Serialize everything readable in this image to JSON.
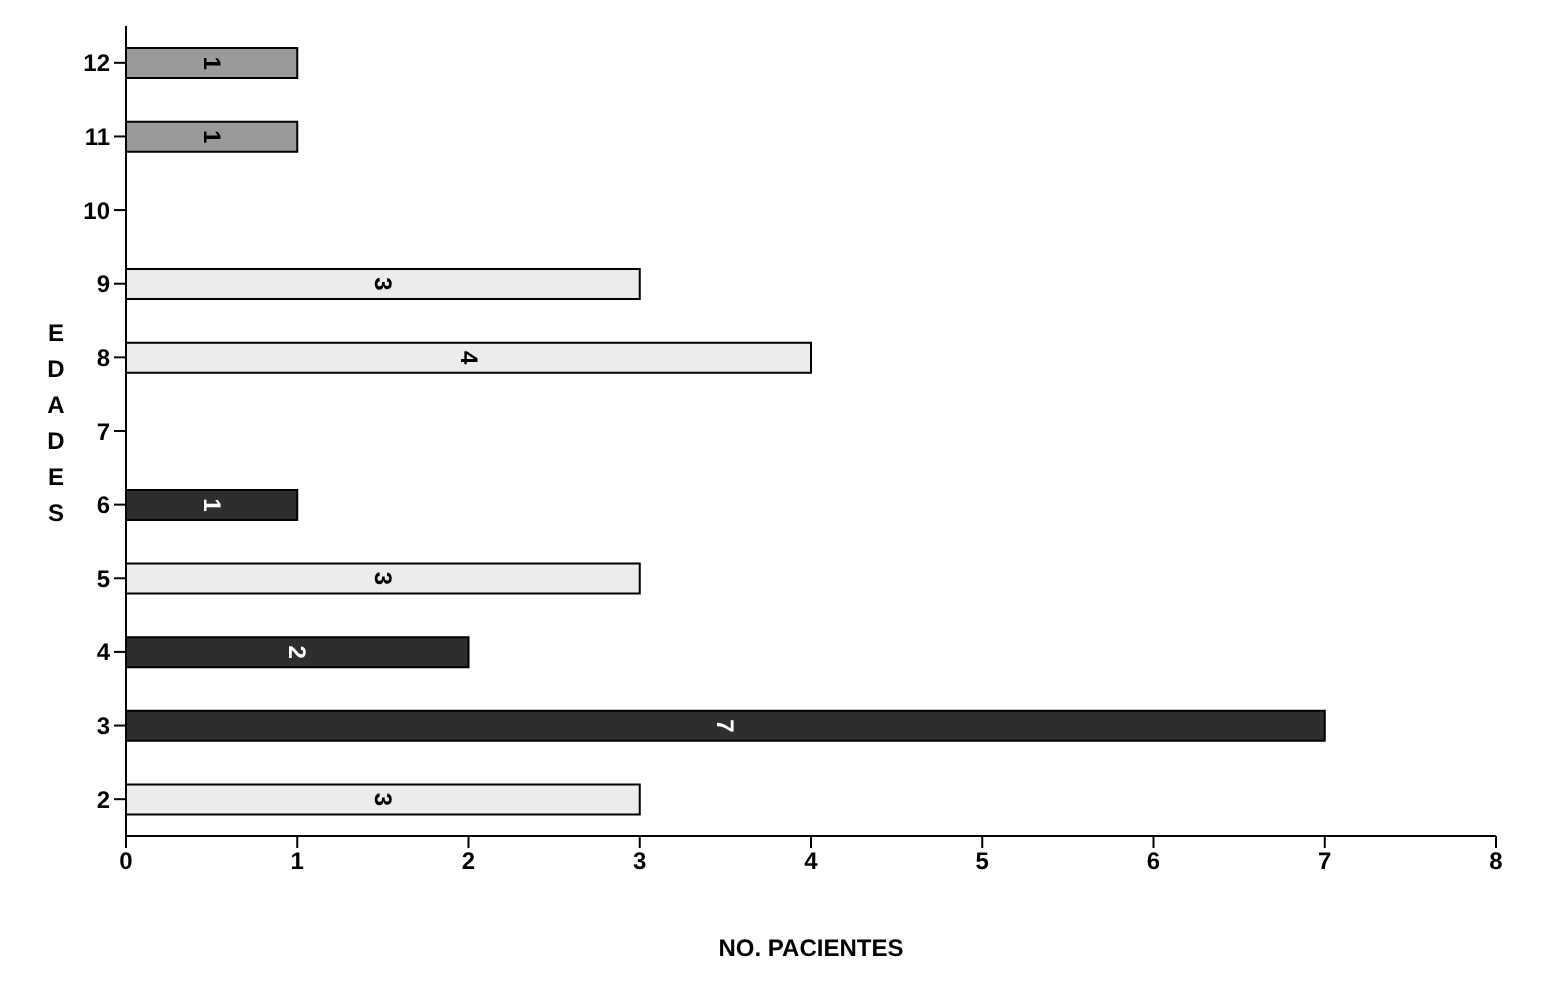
{
  "chart_data": {
    "type": "bar",
    "orientation": "horizontal",
    "xlabel": "NO. PACIENTES",
    "ylabel": "EDADES",
    "categories": [
      "12",
      "11",
      "10",
      "9",
      "8",
      "7",
      "6",
      "5",
      "4",
      "3",
      "2"
    ],
    "values": [
      1,
      1,
      null,
      3,
      4,
      null,
      1,
      3,
      2,
      7,
      3
    ],
    "colors": [
      "#9a9a9a",
      "#9a9a9a",
      "#9a9a9a",
      "#ececec",
      "#ececec",
      "#ececec",
      "#2e2e2e",
      "#ececec",
      "#2e2e2e",
      "#2e2e2e",
      "#ececec"
    ],
    "xlim": [
      0,
      8
    ],
    "xticks": [
      0,
      1,
      2,
      3,
      4,
      5,
      6,
      7,
      8
    ],
    "data_labels": true,
    "grid": false,
    "legend": false
  }
}
